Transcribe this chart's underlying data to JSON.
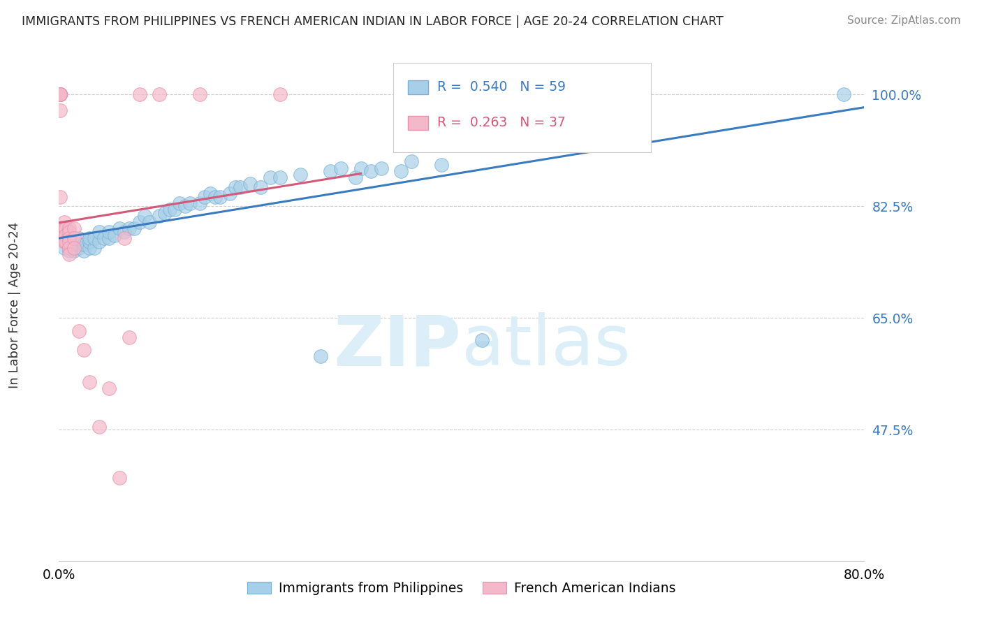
{
  "title": "IMMIGRANTS FROM PHILIPPINES VS FRENCH AMERICAN INDIAN IN LABOR FORCE | AGE 20-24 CORRELATION CHART",
  "source": "Source: ZipAtlas.com",
  "ylabel": "In Labor Force | Age 20-24",
  "ytick_vals": [
    0.475,
    0.65,
    0.825,
    1.0
  ],
  "ytick_labels": [
    "47.5%",
    "65.0%",
    "82.5%",
    "100.0%"
  ],
  "xmin": 0.0,
  "xmax": 0.8,
  "ymin": 0.27,
  "ymax": 1.07,
  "legend_blue_r": "0.540",
  "legend_blue_n": "59",
  "legend_pink_r": "0.263",
  "legend_pink_n": "37",
  "blue_color": "#a8cfe8",
  "pink_color": "#f4b8cb",
  "blue_edge_color": "#7ab0d4",
  "pink_edge_color": "#e890aa",
  "blue_line_color": "#3a7abf",
  "pink_line_color": "#d45878",
  "watermark_color": "#dceef8",
  "blue_scatter_x": [
    0.005,
    0.01,
    0.01,
    0.015,
    0.015,
    0.02,
    0.02,
    0.025,
    0.025,
    0.03,
    0.03,
    0.03,
    0.035,
    0.035,
    0.04,
    0.04,
    0.045,
    0.05,
    0.05,
    0.055,
    0.06,
    0.065,
    0.07,
    0.075,
    0.08,
    0.085,
    0.09,
    0.1,
    0.105,
    0.11,
    0.115,
    0.12,
    0.125,
    0.13,
    0.14,
    0.145,
    0.15,
    0.155,
    0.16,
    0.17,
    0.175,
    0.18,
    0.19,
    0.2,
    0.21,
    0.22,
    0.24,
    0.26,
    0.27,
    0.28,
    0.295,
    0.3,
    0.31,
    0.32,
    0.34,
    0.35,
    0.38,
    0.42,
    0.78
  ],
  "blue_scatter_y": [
    0.76,
    0.755,
    0.765,
    0.755,
    0.77,
    0.76,
    0.775,
    0.755,
    0.765,
    0.76,
    0.77,
    0.775,
    0.76,
    0.775,
    0.77,
    0.785,
    0.775,
    0.775,
    0.785,
    0.78,
    0.79,
    0.785,
    0.79,
    0.79,
    0.8,
    0.81,
    0.8,
    0.81,
    0.815,
    0.82,
    0.82,
    0.83,
    0.825,
    0.83,
    0.83,
    0.84,
    0.845,
    0.84,
    0.84,
    0.845,
    0.855,
    0.855,
    0.86,
    0.855,
    0.87,
    0.87,
    0.875,
    0.59,
    0.88,
    0.885,
    0.87,
    0.885,
    0.88,
    0.885,
    0.88,
    0.895,
    0.89,
    0.615,
    1.0
  ],
  "pink_scatter_x": [
    0.001,
    0.001,
    0.001,
    0.001,
    0.001,
    0.001,
    0.001,
    0.001,
    0.001,
    0.005,
    0.005,
    0.005,
    0.005,
    0.007,
    0.007,
    0.007,
    0.01,
    0.01,
    0.01,
    0.01,
    0.01,
    0.01,
    0.015,
    0.015,
    0.015,
    0.02,
    0.025,
    0.03,
    0.04,
    0.05,
    0.06,
    0.065,
    0.07,
    0.08,
    0.1,
    0.14,
    0.22
  ],
  "pink_scatter_y": [
    1.0,
    1.0,
    1.0,
    1.0,
    1.0,
    1.0,
    1.0,
    0.975,
    0.84,
    0.8,
    0.79,
    0.78,
    0.77,
    0.79,
    0.78,
    0.77,
    0.79,
    0.785,
    0.775,
    0.77,
    0.76,
    0.75,
    0.79,
    0.775,
    0.76,
    0.63,
    0.6,
    0.55,
    0.48,
    0.54,
    0.4,
    0.775,
    0.62,
    1.0,
    1.0,
    1.0,
    1.0
  ]
}
